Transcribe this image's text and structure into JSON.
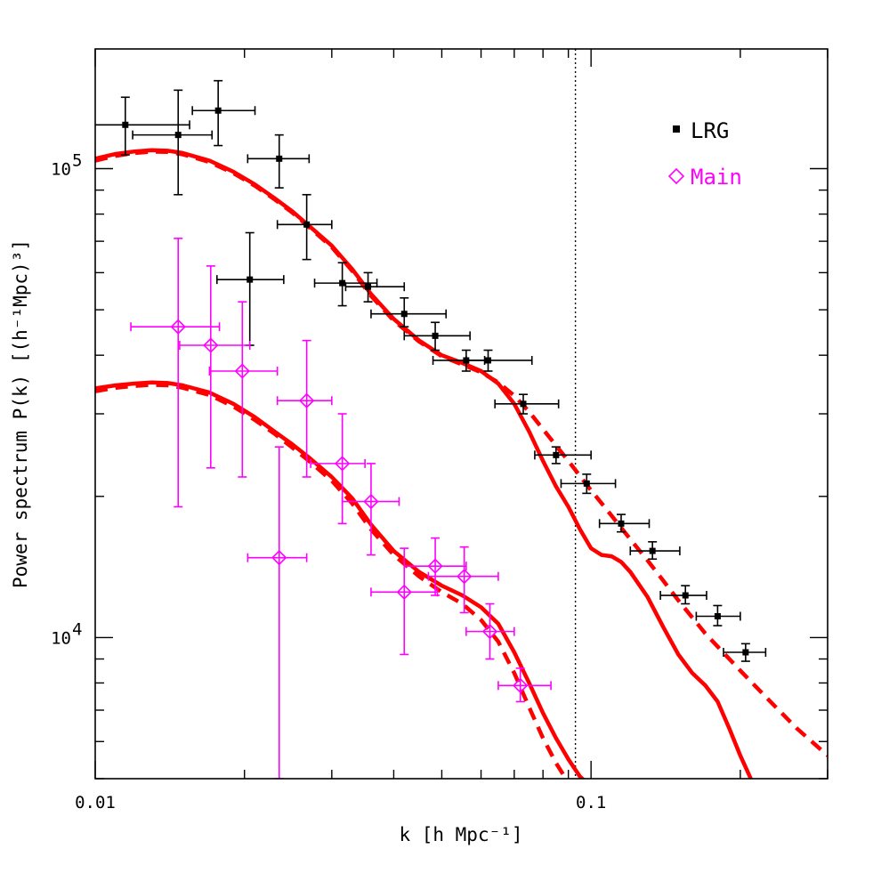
{
  "chart_data": {
    "type": "scatter",
    "title": "",
    "xlabel": "k [h Mpc⁻¹]",
    "ylabel": "Power spectrum P(k) [(h⁻¹Mpc)³]",
    "x_scale": "log",
    "y_scale": "log",
    "xlim": [
      0.01,
      0.3
    ],
    "ylim": [
      5000,
      180000
    ],
    "x_tick_labels": [
      {
        "value": 0.01,
        "label": "0.01"
      },
      {
        "value": 0.1,
        "label": "0.1"
      }
    ],
    "y_tick_labels": [
      {
        "value": 10000,
        "base": "10",
        "exp": "4"
      },
      {
        "value": 100000,
        "base": "10",
        "exp": "5"
      }
    ],
    "legend_position": "top-right",
    "vertical_reference_line": {
      "x": 0.093,
      "style": "dotted",
      "color": "#000000"
    },
    "series": [
      {
        "name": "LRG",
        "marker": "filled-square",
        "color": "#000000",
        "points": [
          {
            "x": 0.0115,
            "y": 124000,
            "xerr": [
              0.0085,
              0.0155
            ],
            "yerr": [
              107000,
              142000
            ]
          },
          {
            "x": 0.0147,
            "y": 118000,
            "xerr": [
              0.0119,
              0.0172
            ],
            "yerr": [
              88000,
              147000
            ]
          },
          {
            "x": 0.0177,
            "y": 133000,
            "xerr": [
              0.0157,
              0.021
            ],
            "yerr": [
              112000,
              154000
            ]
          },
          {
            "x": 0.0205,
            "y": 58000,
            "xerr": [
              0.0176,
              0.024
            ],
            "yerr": [
              42000,
              73000
            ]
          },
          {
            "x": 0.0235,
            "y": 105000,
            "xerr": [
              0.0203,
              0.027
            ],
            "yerr": [
              91000,
              118000
            ]
          },
          {
            "x": 0.0267,
            "y": 76000,
            "xerr": [
              0.0233,
              0.03
            ],
            "yerr": [
              64000,
              88000
            ]
          },
          {
            "x": 0.0315,
            "y": 57000,
            "xerr": [
              0.0277,
              0.037
            ],
            "yerr": [
              51000,
              63000
            ]
          },
          {
            "x": 0.0355,
            "y": 56000,
            "xerr": [
              0.032,
              0.042
            ],
            "yerr": [
              52000,
              60000
            ]
          },
          {
            "x": 0.042,
            "y": 49000,
            "xerr": [
              0.036,
              0.051
            ],
            "yerr": [
              46000,
              53000
            ]
          },
          {
            "x": 0.0485,
            "y": 44000,
            "xerr": [
              0.042,
              0.057
            ],
            "yerr": [
              41000,
              47000
            ]
          },
          {
            "x": 0.056,
            "y": 39000,
            "xerr": [
              0.048,
              0.061
            ],
            "yerr": [
              37000,
              41000
            ]
          },
          {
            "x": 0.062,
            "y": 39000,
            "xerr": [
              0.056,
              0.076
            ],
            "yerr": [
              37000,
              41000
            ]
          },
          {
            "x": 0.073,
            "y": 31500,
            "xerr": [
              0.064,
              0.086
            ],
            "yerr": [
              30000,
              33000
            ]
          },
          {
            "x": 0.085,
            "y": 24500,
            "xerr": [
              0.077,
              0.1
            ],
            "yerr": [
              23500,
              25500
            ]
          },
          {
            "x": 0.098,
            "y": 21300,
            "xerr": [
              0.087,
              0.112
            ],
            "yerr": [
              20300,
              22300
            ]
          },
          {
            "x": 0.115,
            "y": 17500,
            "xerr": [
              0.104,
              0.131
            ],
            "yerr": [
              16800,
              18300
            ]
          },
          {
            "x": 0.133,
            "y": 15300,
            "xerr": [
              0.12,
              0.151
            ],
            "yerr": [
              14700,
              16000
            ]
          },
          {
            "x": 0.155,
            "y": 12300,
            "xerr": [
              0.138,
              0.171
            ],
            "yerr": [
              11800,
              12900
            ]
          },
          {
            "x": 0.18,
            "y": 11100,
            "xerr": [
              0.163,
              0.2
            ],
            "yerr": [
              10600,
              11700
            ]
          },
          {
            "x": 0.205,
            "y": 9300,
            "xerr": [
              0.185,
              0.225
            ],
            "yerr": [
              8900,
              9700
            ]
          }
        ]
      },
      {
        "name": "Main",
        "marker": "open-diamond",
        "color": "#ff00ff",
        "points": [
          {
            "x": 0.0147,
            "y": 46000,
            "xerr": [
              0.0118,
              0.0178
            ],
            "yerr": [
              19000,
              71000
            ]
          },
          {
            "x": 0.0171,
            "y": 42000,
            "xerr": [
              0.0148,
              0.0205
            ],
            "yerr": [
              23000,
              62000
            ]
          },
          {
            "x": 0.0198,
            "y": 37000,
            "xerr": [
              0.017,
              0.0233
            ],
            "yerr": [
              22000,
              52000
            ]
          },
          {
            "x": 0.0235,
            "y": 14800,
            "xerr": [
              0.0203,
              0.0267
            ],
            "yerr": [
              5000,
              25500
            ]
          },
          {
            "x": 0.0267,
            "y": 32000,
            "xerr": [
              0.0233,
              0.03
            ],
            "yerr": [
              22000,
              43000
            ]
          },
          {
            "x": 0.0315,
            "y": 23500,
            "xerr": [
              0.0272,
              0.035
            ],
            "yerr": [
              17500,
              30000
            ]
          },
          {
            "x": 0.036,
            "y": 19500,
            "xerr": [
              0.0315,
              0.041
            ],
            "yerr": [
              15000,
              23500
            ]
          },
          {
            "x": 0.042,
            "y": 12500,
            "xerr": [
              0.036,
              0.049
            ],
            "yerr": [
              9200,
              15500
            ]
          },
          {
            "x": 0.0485,
            "y": 14200,
            "xerr": [
              0.042,
              0.056
            ],
            "yerr": [
              12300,
              16300
            ]
          },
          {
            "x": 0.0555,
            "y": 13500,
            "xerr": [
              0.047,
              0.065
            ],
            "yerr": [
              11300,
              15600
            ]
          },
          {
            "x": 0.0625,
            "y": 10300,
            "xerr": [
              0.056,
              0.07
            ],
            "yerr": [
              9000,
              11800
            ]
          },
          {
            "x": 0.072,
            "y": 7900,
            "xerr": [
              0.065,
              0.083
            ],
            "yerr": [
              7300,
              8600
            ]
          }
        ]
      }
    ],
    "model_curves": [
      {
        "group": "LRG",
        "style": "solid",
        "color": "#ff0000",
        "points": [
          [
            0.01,
            105000
          ],
          [
            0.011,
            107500
          ],
          [
            0.012,
            108800
          ],
          [
            0.013,
            109500
          ],
          [
            0.014,
            109200
          ],
          [
            0.015,
            108000
          ],
          [
            0.017,
            104000
          ],
          [
            0.019,
            98500
          ],
          [
            0.021,
            92500
          ],
          [
            0.023,
            86500
          ],
          [
            0.025,
            81000
          ],
          [
            0.027,
            75500
          ],
          [
            0.03,
            68500
          ],
          [
            0.033,
            61000
          ],
          [
            0.036,
            54000
          ],
          [
            0.04,
            47800
          ],
          [
            0.045,
            43000
          ],
          [
            0.05,
            40000
          ],
          [
            0.055,
            38500
          ],
          [
            0.06,
            37000
          ],
          [
            0.065,
            34800
          ],
          [
            0.07,
            31500
          ],
          [
            0.075,
            27500
          ],
          [
            0.08,
            23800
          ],
          [
            0.085,
            21000
          ],
          [
            0.09,
            19000
          ],
          [
            0.095,
            17000
          ],
          [
            0.1,
            15500
          ],
          [
            0.105,
            15000
          ],
          [
            0.11,
            14900
          ],
          [
            0.115,
            14500
          ],
          [
            0.12,
            13800
          ],
          [
            0.13,
            12200
          ],
          [
            0.14,
            10500
          ],
          [
            0.15,
            9200
          ],
          [
            0.16,
            8400
          ],
          [
            0.17,
            7900
          ],
          [
            0.18,
            7300
          ],
          [
            0.19,
            6400
          ],
          [
            0.2,
            5600
          ],
          [
            0.21,
            5000
          ]
        ]
      },
      {
        "group": "LRG",
        "style": "dashed",
        "color": "#ff0000",
        "points": [
          [
            0.01,
            104000
          ],
          [
            0.011,
            106500
          ],
          [
            0.012,
            108000
          ],
          [
            0.013,
            108700
          ],
          [
            0.014,
            108500
          ],
          [
            0.015,
            107300
          ],
          [
            0.017,
            103300
          ],
          [
            0.019,
            97800
          ],
          [
            0.021,
            91900
          ],
          [
            0.023,
            86000
          ],
          [
            0.025,
            80500
          ],
          [
            0.027,
            75000
          ],
          [
            0.03,
            68000
          ],
          [
            0.033,
            60500
          ],
          [
            0.036,
            53500
          ],
          [
            0.04,
            47400
          ],
          [
            0.045,
            42800
          ],
          [
            0.05,
            39800
          ],
          [
            0.055,
            38200
          ],
          [
            0.06,
            36800
          ],
          [
            0.065,
            35000
          ],
          [
            0.07,
            32800
          ],
          [
            0.075,
            30300
          ],
          [
            0.08,
            27800
          ],
          [
            0.09,
            23800
          ],
          [
            0.1,
            20600
          ],
          [
            0.11,
            18200
          ],
          [
            0.12,
            16200
          ],
          [
            0.13,
            14600
          ],
          [
            0.14,
            13200
          ],
          [
            0.15,
            12000
          ],
          [
            0.17,
            10200
          ],
          [
            0.2,
            8500
          ],
          [
            0.23,
            7300
          ],
          [
            0.26,
            6400
          ],
          [
            0.3,
            5600
          ]
        ]
      },
      {
        "group": "Main",
        "style": "solid",
        "color": "#ff0000",
        "points": [
          [
            0.01,
            34000
          ],
          [
            0.011,
            34500
          ],
          [
            0.012,
            34800
          ],
          [
            0.013,
            35000
          ],
          [
            0.014,
            34900
          ],
          [
            0.015,
            34500
          ],
          [
            0.017,
            33300
          ],
          [
            0.019,
            31500
          ],
          [
            0.021,
            29500
          ],
          [
            0.023,
            27500
          ],
          [
            0.025,
            25800
          ],
          [
            0.027,
            24200
          ],
          [
            0.03,
            22000
          ],
          [
            0.033,
            19800
          ],
          [
            0.036,
            17400
          ],
          [
            0.04,
            15300
          ],
          [
            0.045,
            13800
          ],
          [
            0.05,
            12900
          ],
          [
            0.055,
            12300
          ],
          [
            0.06,
            11600
          ],
          [
            0.065,
            10700
          ],
          [
            0.07,
            9300
          ],
          [
            0.075,
            8000
          ],
          [
            0.08,
            6900
          ],
          [
            0.085,
            6100
          ],
          [
            0.09,
            5500
          ],
          [
            0.095,
            5050
          ],
          [
            0.1,
            4800
          ]
        ]
      },
      {
        "group": "Main",
        "style": "dashed",
        "color": "#ff0000",
        "points": [
          [
            0.01,
            33500
          ],
          [
            0.011,
            34100
          ],
          [
            0.012,
            34400
          ],
          [
            0.013,
            34600
          ],
          [
            0.014,
            34500
          ],
          [
            0.015,
            34100
          ],
          [
            0.017,
            32900
          ],
          [
            0.019,
            31100
          ],
          [
            0.021,
            29100
          ],
          [
            0.023,
            27200
          ],
          [
            0.025,
            25400
          ],
          [
            0.027,
            23800
          ],
          [
            0.03,
            21600
          ],
          [
            0.033,
            19300
          ],
          [
            0.036,
            17000
          ],
          [
            0.04,
            15000
          ],
          [
            0.045,
            13500
          ],
          [
            0.05,
            12500
          ],
          [
            0.055,
            11800
          ],
          [
            0.06,
            10900
          ],
          [
            0.065,
            9800
          ],
          [
            0.07,
            8400
          ],
          [
            0.075,
            7100
          ],
          [
            0.08,
            6100
          ],
          [
            0.085,
            5400
          ],
          [
            0.09,
            4900
          ]
        ]
      }
    ]
  }
}
